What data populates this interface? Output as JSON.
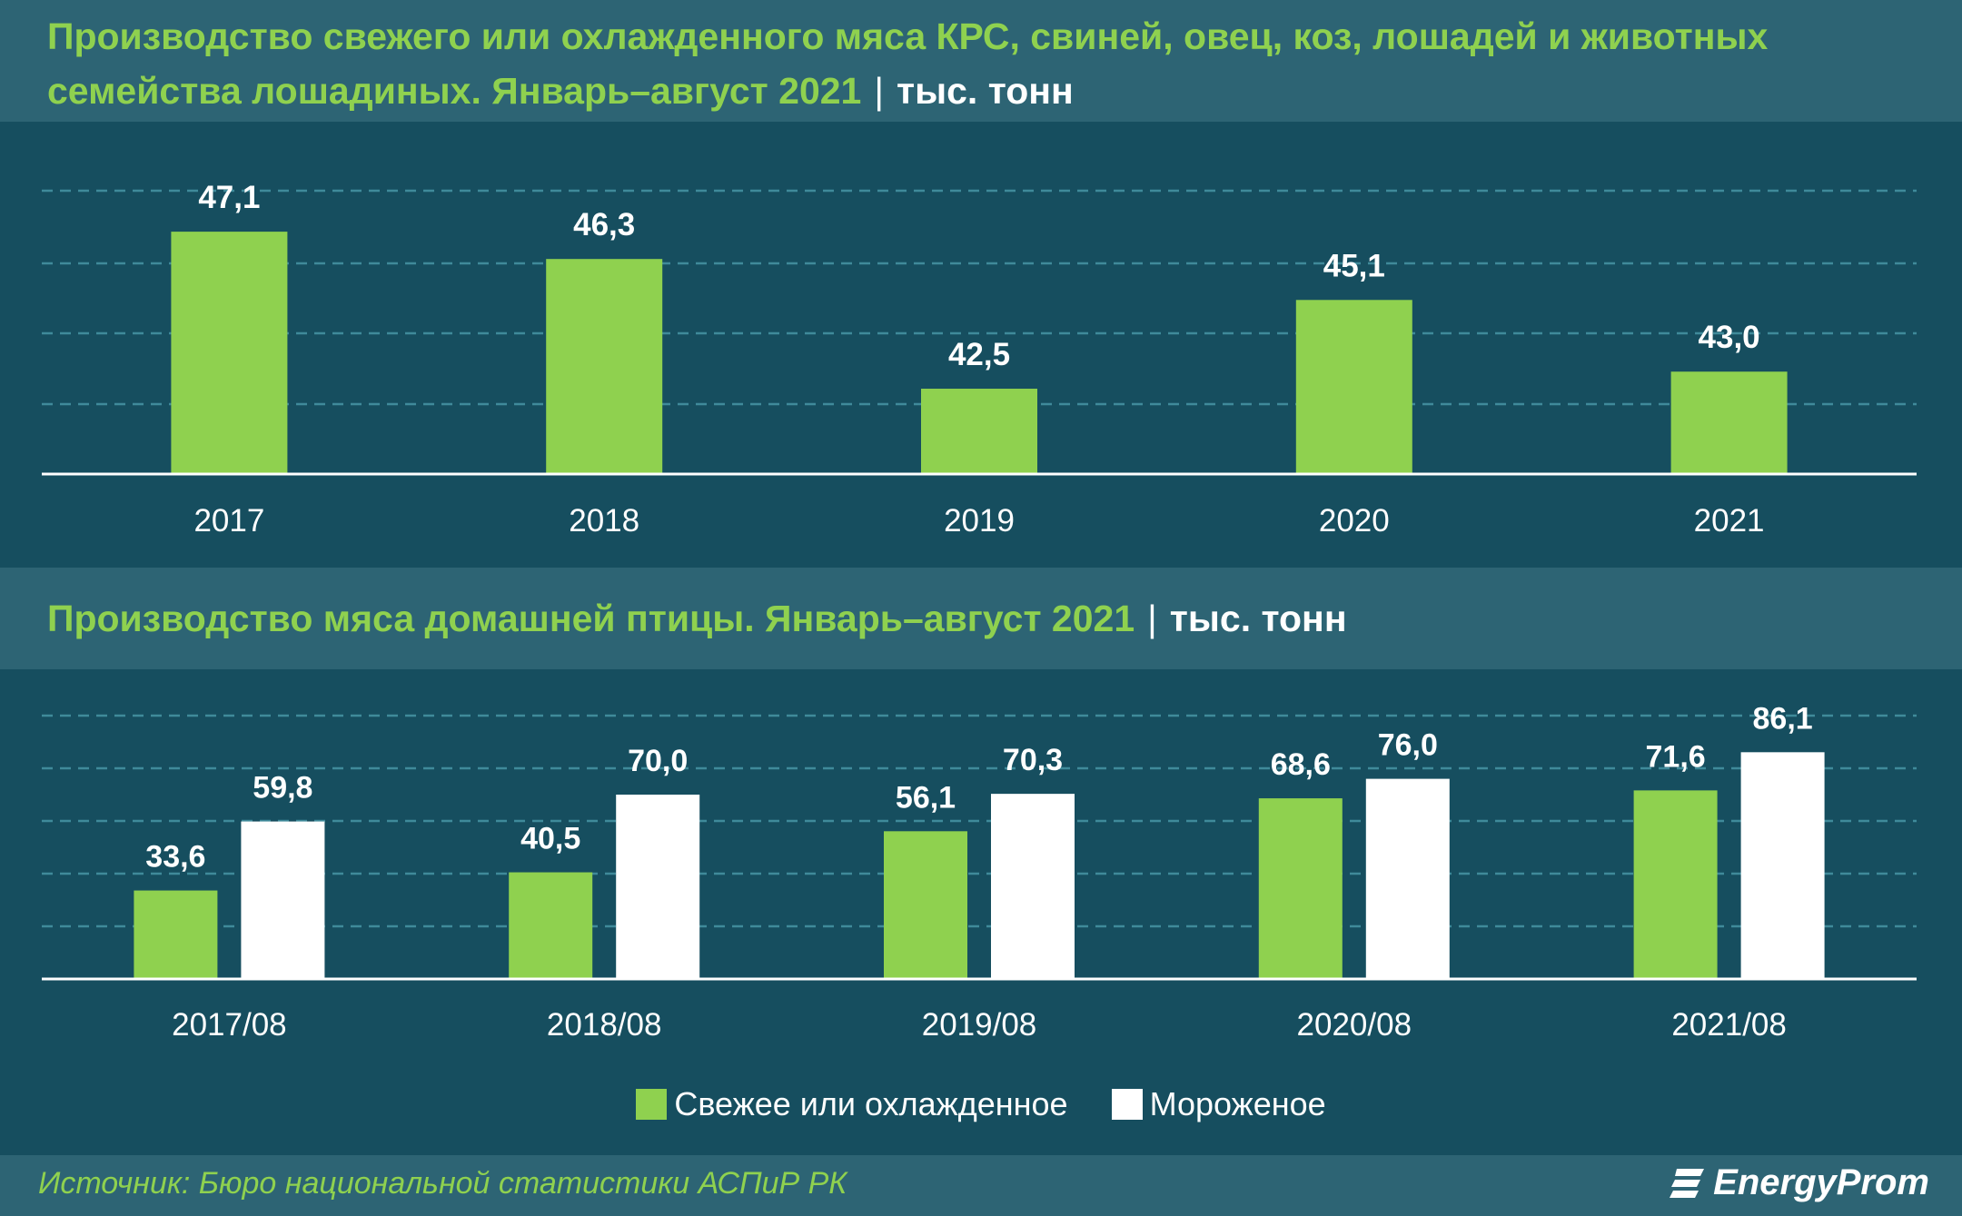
{
  "colors": {
    "background": "#164e5f",
    "band": "#2d6474",
    "green": "#8fd14f",
    "white": "#ffffff",
    "grid": "#3f8a9a"
  },
  "chart_data": [
    {
      "type": "bar",
      "title": "Производство свежего или охлажденного мяса КРС, свиней, овец, коз, лошадей и животных семейства лошадиных. Январь–август 2021",
      "title_line1": "Производство свежего или охлажденного мяса КРС, свиней, овец, коз, лошадей и животных",
      "title_line2": "семейства лошадиных. Январь–август 2021",
      "unit": "тыс. тонн",
      "categories": [
        "2017",
        "2018",
        "2019",
        "2020",
        "2021"
      ],
      "values": [
        47.1,
        46.3,
        42.5,
        45.1,
        43.0
      ],
      "labels": [
        "47,1",
        "46,3",
        "42,5",
        "45,1",
        "43,0"
      ],
      "ylim": [
        40.0,
        48.3
      ],
      "grid": true
    },
    {
      "type": "bar",
      "title": "Производство мяса домашней птицы. Январь–август 2021",
      "unit": "тыс. тонн",
      "categories": [
        "2017/08",
        "2018/08",
        "2019/08",
        "2020/08",
        "2021/08"
      ],
      "series": [
        {
          "name": "Свежее или охлажденное",
          "values": [
            33.6,
            40.5,
            56.1,
            68.6,
            71.6
          ],
          "labels": [
            "33,6",
            "40,5",
            "56,1",
            "68,6",
            "71,6"
          ],
          "color": "#8fd14f"
        },
        {
          "name": "Мороженое",
          "values": [
            59.8,
            70.0,
            70.3,
            76.0,
            86.1
          ],
          "labels": [
            "59,8",
            "70,0",
            "70,3",
            "76,0",
            "86,1"
          ],
          "color": "#ffffff"
        }
      ],
      "ylim": [
        0,
        100
      ],
      "grid": true,
      "legend": "bottom"
    }
  ],
  "footer": {
    "source": "Источник: Бюро национальной статистики АСПиР РК",
    "logo": "EnergyProm"
  }
}
